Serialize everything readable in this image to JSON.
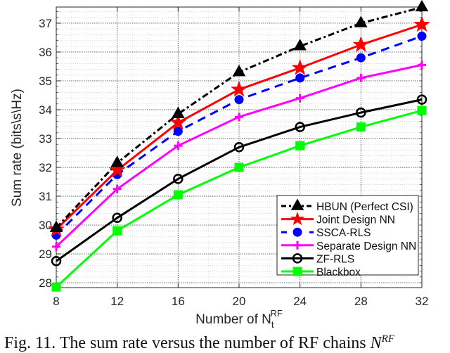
{
  "chart_data": {
    "type": "line",
    "title": "",
    "xlabel": "Number of N_t^RF",
    "xlabel_main": "Number of N",
    "xlabel_sub": "t",
    "xlabel_sup": "RF",
    "ylabel": "Sum rate (bits\\s\\Hz)",
    "x": [
      8,
      12,
      16,
      20,
      24,
      28,
      32
    ],
    "xticks": [
      "8",
      "12",
      "16",
      "20",
      "24",
      "28",
      "32"
    ],
    "yticks": [
      "28",
      "29",
      "30",
      "31",
      "32",
      "33",
      "34",
      "35",
      "36",
      "37"
    ],
    "xlim": [
      8,
      32
    ],
    "ylim": [
      27.83,
      37.56
    ],
    "grid": true,
    "minor_grid": true,
    "legend_position": "lower right",
    "series": [
      {
        "name": "HBUN (Perfect CSI)",
        "color": "#000000",
        "style": "dashdot",
        "marker": "triangle",
        "values": [
          29.9,
          32.15,
          33.85,
          35.3,
          36.2,
          37.0,
          37.55
        ]
      },
      {
        "name": "Joint Design NN",
        "color": "#ff0000",
        "style": "solid",
        "marker": "star",
        "values": [
          29.85,
          31.9,
          33.55,
          34.7,
          35.45,
          36.25,
          36.95
        ]
      },
      {
        "name": "SSCA-RLS",
        "color": "#0000ff",
        "style": "dashed",
        "marker": "dot",
        "values": [
          29.65,
          31.75,
          33.25,
          34.35,
          35.1,
          35.8,
          36.55
        ]
      },
      {
        "name": "Separate Design NN",
        "color": "#ff00ff",
        "style": "solid",
        "marker": "plus",
        "values": [
          29.25,
          31.25,
          32.75,
          33.75,
          34.4,
          35.1,
          35.55
        ]
      },
      {
        "name": "ZF-RLS",
        "color": "#000000",
        "style": "solid",
        "marker": "circle",
        "values": [
          28.75,
          30.25,
          31.6,
          32.7,
          33.4,
          33.9,
          34.35
        ]
      },
      {
        "name": "Blackbox",
        "color": "#00ff00",
        "style": "solid",
        "marker": "square",
        "values": [
          27.85,
          29.8,
          31.05,
          32.0,
          32.75,
          33.4,
          33.97
        ]
      }
    ]
  },
  "caption": {
    "text": "Fig. 11.  The sum rate versus the number of RF chains ",
    "math": "N",
    "math_sup": "RF"
  }
}
